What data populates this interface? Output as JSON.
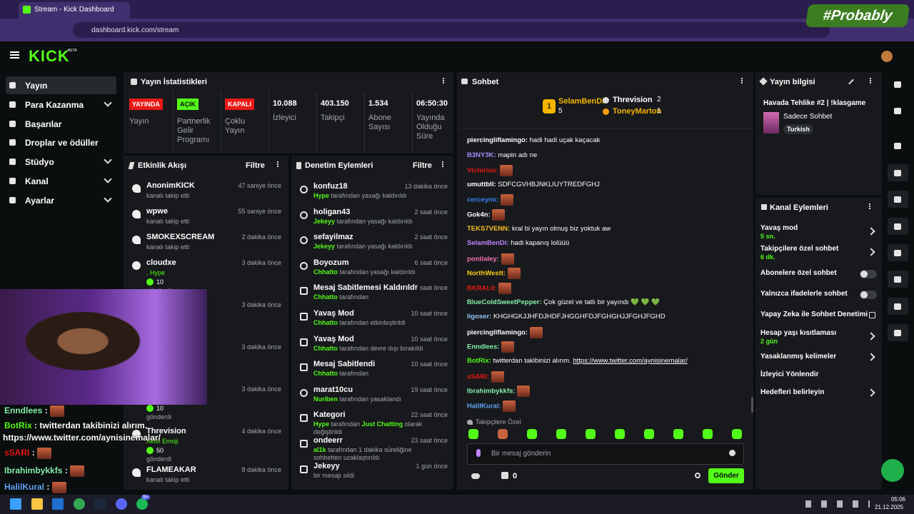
{
  "browser": {
    "tab_title": "Stream - Kick Dashboard",
    "url": "dashboard.kick.com/stream"
  },
  "watermark": "#Probably",
  "header": {
    "logo": "KICK",
    "badge": "BETA"
  },
  "nav": [
    {
      "label": "Yayın",
      "active": true
    },
    {
      "label": "Para Kazanma",
      "expandable": true
    },
    {
      "label": "Başarılar"
    },
    {
      "label": "Droplar ve ödüller"
    },
    {
      "label": "Stüdyo",
      "expandable": true
    },
    {
      "label": "Kanal",
      "expandable": true
    },
    {
      "label": "Ayarlar",
      "expandable": true
    }
  ],
  "stats": {
    "title": "Yayın İstatistikleri",
    "items": [
      {
        "badge": "YAYINDA",
        "badge_color": "#e91916",
        "label": "Yayın"
      },
      {
        "badge": "AÇIK",
        "badge_color": "#53fc18",
        "label": "Partnerlik Gelir Programı"
      },
      {
        "badge": "KAPALI",
        "badge_color": "#e91916",
        "label": "Çoklu Yayın"
      },
      {
        "value": "10.088",
        "label": "İzleyici"
      },
      {
        "value": "403.150",
        "label": "Takipçi"
      },
      {
        "value": "1.534",
        "label": "Abone Sayısı"
      },
      {
        "value": "06:50:30",
        "label": "Yayında Olduğu Süre"
      }
    ]
  },
  "activity": {
    "title": "Etkinlik Akışı",
    "filter": "Filtre",
    "items": [
      {
        "icon": "heart",
        "name": "AnonimKICK",
        "sub": "kanalı takip etti",
        "time": "47 saniye önce"
      },
      {
        "icon": "heart",
        "name": "wpwe",
        "sub": "kanalı takip etti",
        "time": "55 saniye önce"
      },
      {
        "icon": "heart",
        "name": "SMOKEXSCREAM",
        "sub": "kanalı takip etti",
        "time": "2 dakika önce"
      },
      {
        "icon": "kick",
        "name": "cloudxe",
        "sub": ", Hype",
        "amount": "10",
        "sent": "gönderdi",
        "time": "3 dakika önce"
      },
      {
        "icon": "kick",
        "time": "3 dakika önce"
      },
      {
        "icon": "kick",
        "time": "3 dakika önce"
      },
      {
        "icon": "kick",
        "amount": "10",
        "sent": "gönderdi",
        "time": "3 dakika önce"
      },
      {
        "icon": "kick",
        "name": "Threvision",
        "sub": "Akıllı Emoji",
        "amount": "50",
        "sent": "gönderdi",
        "time": "4 dakika önce"
      },
      {
        "icon": "heart",
        "name": "FLAMEAKAR",
        "sub": "kanalı takip etti",
        "time": "8 dakika önce"
      }
    ]
  },
  "moderation": {
    "title": "Denetim Eylemleri",
    "filter": "Filtre",
    "items": [
      {
        "icon": "unban",
        "title": "konfuz18",
        "actor": "Hype",
        "action": "tarafından yasağı kaldırıldı",
        "time": "13 dakika önce"
      },
      {
        "icon": "unban",
        "title": "holigan43",
        "actor": "Jekeyy",
        "action": "tarafından yasağı kaldırıldı",
        "time": "2 saat önce"
      },
      {
        "icon": "unban",
        "title": "sefayilmaz",
        "actor": "Jekeyy",
        "action": "tarafından yasağı kaldırıldı",
        "time": "2 saat önce"
      },
      {
        "icon": "unban",
        "title": "Boyozum",
        "actor": "Chhatto",
        "action": "tarafından yasağı kaldırıldı",
        "time": "6 saat önce"
      },
      {
        "icon": "unpin",
        "title": "Mesaj Sabitlemesi Kaldırıldı",
        "actor": "Chhatto",
        "action": "tarafından",
        "time": "7 saat önce"
      },
      {
        "icon": "slow",
        "title": "Yavaş Mod",
        "actor": "Chhatto",
        "action": "tarafından etkinleştirildi",
        "time": "10 saat önce"
      },
      {
        "icon": "slow",
        "title": "Yavaş Mod",
        "actor": "Chhatto",
        "action": "tarafından devre dışı bırakıldı",
        "time": "10 saat önce"
      },
      {
        "icon": "pin",
        "title": "Mesaj Sabitlendi",
        "actor": "Chhatto",
        "action": "tarafından",
        "time": "10 saat önce"
      },
      {
        "icon": "ban",
        "title": "marat10cu",
        "actor": "Nuriben",
        "action": "tarafından yasaklandı",
        "time": "19 saat önce"
      },
      {
        "icon": "category",
        "title": "Kategori",
        "actor": "Hype",
        "action": "tarafından",
        "highlight": "Just Chatting",
        "rest": "olarak değiştirildi",
        "time": "22 saat önce"
      },
      {
        "icon": "timeout",
        "title": "ondeerr",
        "actor": "al1k",
        "action": "tarafından 1 dakika süreliğine sohbetten uzaklaştırıldı",
        "time": "23 saat önce"
      },
      {
        "icon": "delete",
        "title": "Jekeyy",
        "action": "bir mesajı sildi",
        "time": "1 gün önce"
      }
    ]
  },
  "chat": {
    "title": "Sohbet",
    "separator": ":",
    "leaders": [
      {
        "rank": "1",
        "name": "SelamBenDi",
        "count": "5"
      },
      {
        "name": "Threvision",
        "count": "2"
      },
      {
        "name": "ToneyMarton",
        "count": "1"
      }
    ],
    "messages": [
      {
        "user": "piercingliflamingo",
        "color": "#ffffff",
        "text": "hadi hadi uçak kaçacak"
      },
      {
        "user": "B3NY3K",
        "color": "#a78bfa",
        "text": "mapin adı ne"
      },
      {
        "user": "Victorius",
        "color": "#e91916"
      },
      {
        "user": "umuttbll",
        "color": "#ffffff",
        "text": "SDFCGVHBJNKLIUYTREDFGHJ"
      },
      {
        "user": "cerceynx",
        "color": "#3b82f6"
      },
      {
        "user": "Gok4n",
        "color": "#ffffff"
      },
      {
        "user": "TEKS7VENN",
        "color": "#fbbf24",
        "text": "kral bi yayın olmuş biz yoktuk aw"
      },
      {
        "user": "SelamBenDi",
        "color": "#c084fc",
        "text": "hadi kapanış lolüüü"
      },
      {
        "user": "pontialey",
        "color": "#f472b6"
      },
      {
        "user": "NorthWestt",
        "color": "#facc15"
      },
      {
        "user": "BKRAL0",
        "color": "#e91916"
      },
      {
        "user": "BlueColdSweetPepper",
        "color": "#86efac",
        "text": "Çok güzel ve tatlı bir yayındı 💚 💚 💚"
      },
      {
        "user": "ligoser",
        "color": "#93c5fd",
        "text": "KHGHGKJJHFDJHDFJHGGHFDJFGHGHJJFGHJFGHD"
      },
      {
        "user": "piercingliflamingo",
        "color": "#ffffff"
      },
      {
        "user": "Enndlees",
        "color": "#86efac"
      },
      {
        "user": "BotRix",
        "color": "#53fc18",
        "text": "twitterdan takibinizi alırım.",
        "link": "https://www.twitter.com/aynisinemalar/"
      },
      {
        "user": "sSARI",
        "color": "#e91916"
      },
      {
        "user": "Ibrahimbykkfs",
        "color": "#86efac"
      },
      {
        "user": "HalilKural",
        "color": "#60a5fa"
      }
    ],
    "mode": "Takipçilere Özel",
    "placeholder": "Bir mesaj gönderin",
    "points": "0",
    "send": "Gönder"
  },
  "stream_info": {
    "title": "Yayın bilgisi",
    "stream_title": "Havada Tehlike #2 | !klasgame",
    "category": "Sadece Sohbet",
    "tag": "Turkish"
  },
  "channel_actions": {
    "title": "Kanal Eylemleri",
    "items": [
      {
        "label": "Yavaş mod",
        "value": "5 sn.",
        "control": "arrow"
      },
      {
        "label": "Takipçilere özel sohbet",
        "value": "6 dk.",
        "control": "arrow"
      },
      {
        "label": "Abonelere özel sohbet",
        "control": "toggle"
      },
      {
        "label": "Yalnızca ifadelerle sohbet",
        "control": "toggle"
      },
      {
        "label": "Yapay Zeka ile Sohbet Denetimi",
        "control": "external"
      },
      {
        "label": "Hesap yaşı kısıtlaması",
        "value": "2 gün",
        "control": "arrow"
      },
      {
        "label": "Yasaklanmış kelimeler",
        "control": "arrow"
      },
      {
        "label": "İzleyici Yönlendir"
      },
      {
        "label": "Hedefleri belirleyin",
        "control": "arrow"
      }
    ]
  },
  "overlay_chat": {
    "separator": ":",
    "messages": [
      {
        "user": "Enndlees",
        "color": "#86efac"
      },
      {
        "user": "BotRix",
        "color": "#53fc18",
        "text": "twitterdan takibinizi alırım.",
        "link": "https://www.twitter.com/aynisinemalar/"
      },
      {
        "user": "sSARI",
        "color": "#e91916"
      },
      {
        "user": "Ibrahimbykkfs",
        "color": "#86efac"
      },
      {
        "user": "HalilKural",
        "color": "#60a5fa"
      }
    ]
  },
  "taskbar": {
    "badge": "9+",
    "time": "05:06",
    "date": "21.12.2025"
  }
}
